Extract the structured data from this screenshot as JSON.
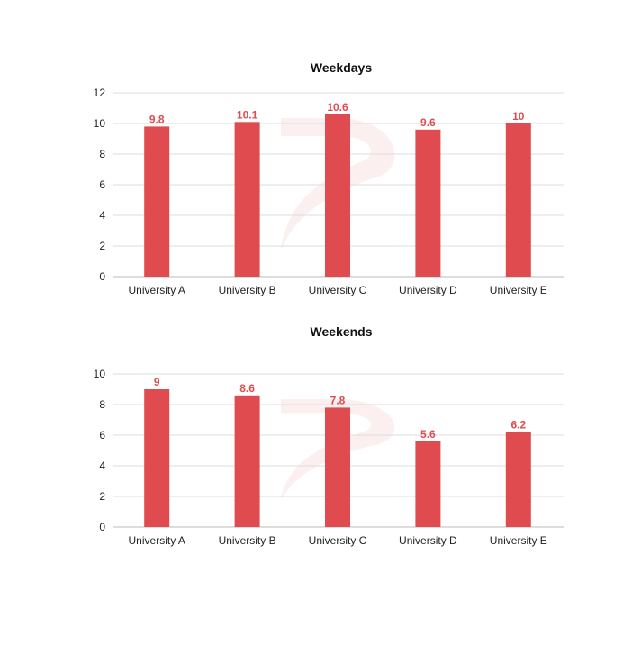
{
  "colors": {
    "bar": "#e04b4f",
    "grid": "#dddddd",
    "axis": "#bbbbbb",
    "watermark": "#e04b4f"
  },
  "watermark_icon": "logo-watermark-icon",
  "chart_data": [
    {
      "type": "bar",
      "title": "Weekdays",
      "categories": [
        "University A",
        "University B",
        "University C",
        "University D",
        "University E"
      ],
      "values": [
        9.8,
        10.1,
        10.6,
        9.6,
        10
      ],
      "value_labels": [
        "9.8",
        "10.1",
        "10.6",
        "9.6",
        "10"
      ],
      "ylim": [
        0,
        12
      ],
      "yticks": [
        0,
        2,
        4,
        6,
        8,
        10,
        12
      ],
      "ytick_labels": [
        "0",
        "2",
        "4",
        "6",
        "8",
        "10",
        "12"
      ],
      "grid": true,
      "legend": "none"
    },
    {
      "type": "bar",
      "title": "Weekends",
      "categories": [
        "University A",
        "University B",
        "University C",
        "University D",
        "University E"
      ],
      "values": [
        9,
        8.6,
        7.8,
        5.6,
        6.2
      ],
      "value_labels": [
        "9",
        "8.6",
        "7.8",
        "5.6",
        "6.2"
      ],
      "ylim": [
        0,
        10
      ],
      "yticks": [
        0,
        2,
        4,
        6,
        8,
        10
      ],
      "ytick_labels": [
        "0",
        "2",
        "4",
        "6",
        "8",
        "10"
      ],
      "grid": true,
      "legend": "none"
    }
  ]
}
